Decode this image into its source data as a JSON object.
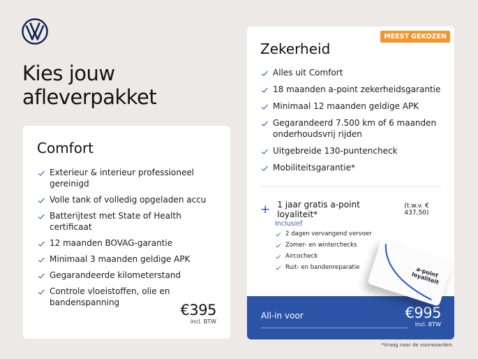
{
  "brand": {
    "logo": "vw-logo"
  },
  "title": [
    "Kies jouw",
    "afleverpakket"
  ],
  "comfort": {
    "name": "Comfort",
    "items": [
      "Exterieur & interieur professioneel gereinigd",
      "Volle tank of volledig opgeladen accu",
      "Batterijtest met State of Health certificaat",
      "12 maanden BOVAG-garantie",
      "Minimaal 3 maanden geldige APK",
      "Gegarandeerde kilometerstand",
      "Controle vloeistoffen, olie en bandenspanning"
    ],
    "price": "€395",
    "price_note": "incl. BTW"
  },
  "zekerheid": {
    "badge": "MEEST GEKOZEN",
    "name": "Zekerheid",
    "items": [
      "Alles uit Comfort",
      "18 maanden a-point zekerheidsgarantie",
      "Minimaal 12 maanden geldige APK",
      "Gegarandeerd 7.500 km of 6 maanden onderhoudsvrij rijden",
      "Uitgebreide 130-puntencheck",
      "Mobiliteitsgarantie*"
    ],
    "extra": "1 jaar gratis a-point loyaliteit*",
    "extra_value": "(t.w.v. € 437,50)",
    "inclusief": "Inclusief",
    "sub_items": [
      "2 dagen vervangend vervoer",
      "Zomer- en winterchecks",
      "Aircocheck",
      "Ruit- en bandenreparatie"
    ],
    "card_text": "a-point loyaliteit",
    "allin_label": "All-in voor",
    "price": "€995",
    "price_note": "incl. BTW"
  },
  "footnote": "*Vraag naar de voorwaarden.",
  "colors": {
    "accent": "#2c54a6",
    "badge": "#f3962a",
    "background": "#ece9e6"
  }
}
